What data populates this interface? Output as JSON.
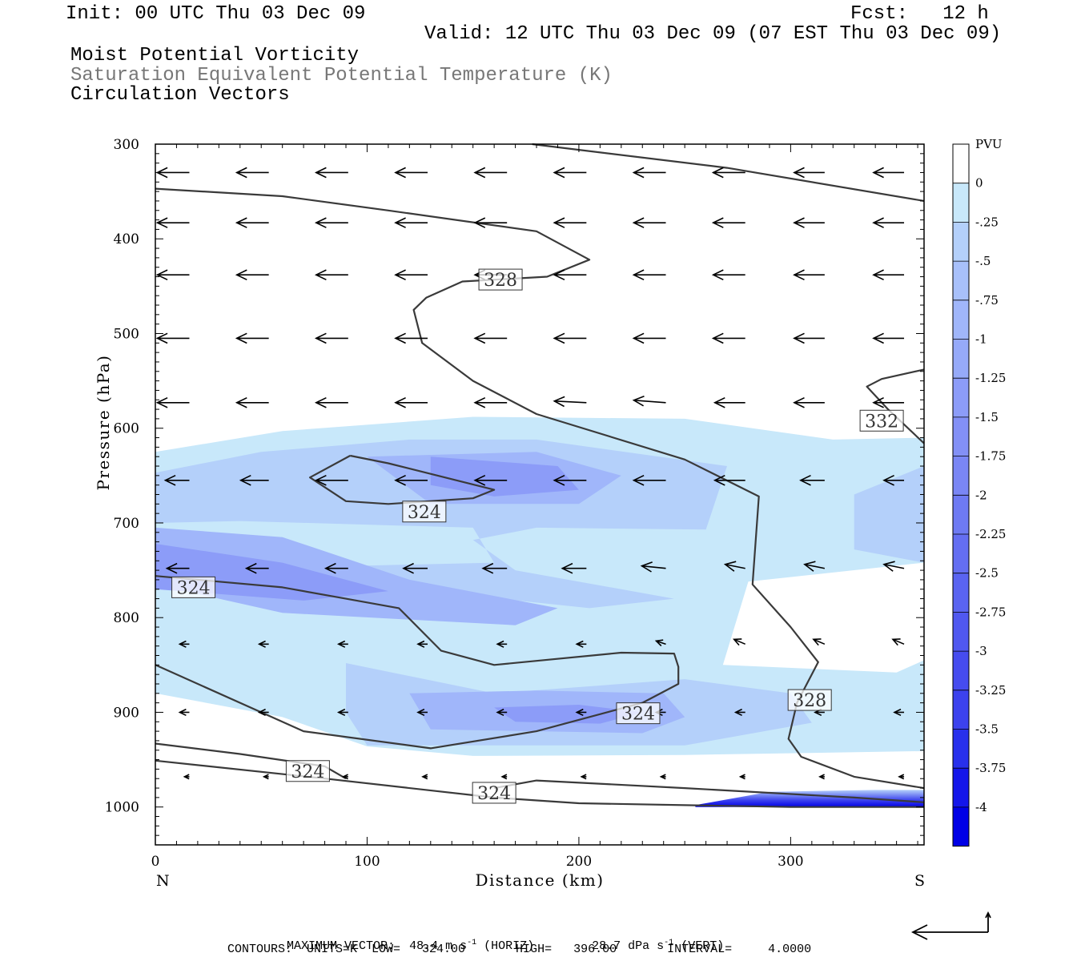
{
  "header": {
    "init": "Init: 00 UTC Thu 03 Dec 09",
    "fcst": "Fcst:   12 h",
    "valid": "Valid: 12 UTC Thu 03 Dec 09 (07 EST Thu 03 Dec 09)",
    "field1": "Moist Potential Vorticity",
    "field2": "Saturation Equivalent Potential Temperature (K)",
    "field3": "Circulation Vectors"
  },
  "footer": {
    "max_vector_label": "MAXIMUM VECTOR:",
    "max_horiz": "48.4 m s",
    "max_horiz_unit": "(HORIZ)",
    "max_vert": "28.7 dPa s",
    "max_vert_unit": "(VERT)",
    "exp": "-1",
    "contours": "CONTOURS:  UNITS=K  LOW=   324.00       HIGH=   396.00       INTERVAL=     4.0000"
  },
  "colors": {
    "c1": "#c8e8fa",
    "c2": "#b4d0fa",
    "c3": "#a0b6fa",
    "c4": "#8c9cf8",
    "c5": "#7a86f5",
    "c6": "#646ef2",
    "c7": "#5058f0",
    "c8": "#3c42ee",
    "c9": "#282cec",
    "c10": "#1416ea",
    "c11": "#0000e6",
    "contour": "#3a3a3a"
  },
  "chart_data": {
    "type": "cross-section",
    "xlabel": "Distance (km)",
    "ylabel": "Pressure (hPa)",
    "xlim": [
      0,
      363
    ],
    "ylim": [
      1040,
      300
    ],
    "x_ticks": [
      0,
      100,
      200,
      300
    ],
    "y_ticks": [
      300,
      400,
      500,
      600,
      700,
      800,
      900,
      1000
    ],
    "x_end_left": "N",
    "x_end_right": "S",
    "colorbar": {
      "unit": "PVU",
      "labels": [
        "0",
        "-.25",
        "-.5",
        "-.75",
        "-1",
        "-1.25",
        "-1.5",
        "-1.75",
        "-2",
        "-2.25",
        "-2.5",
        "-2.75",
        "-3",
        "-3.25",
        "-3.5",
        "-3.75",
        "-4"
      ],
      "colors": [
        "#ffffff",
        "#c8e8fa",
        "#b4d0fa",
        "#a8c0fa",
        "#a0b6fa",
        "#96aaf9",
        "#8c9cf8",
        "#8390f6",
        "#7a86f5",
        "#6e7af3",
        "#646ef2",
        "#5a64f1",
        "#5058f0",
        "#464cef",
        "#3c42ee",
        "#2830ec",
        "#1416ea",
        "#0000e6"
      ]
    },
    "contour_labels": [
      {
        "value": "328",
        "x": 163,
        "y": 443
      },
      {
        "value": "332",
        "x": 343,
        "y": 592
      },
      {
        "value": "324",
        "x": 127,
        "y": 688
      },
      {
        "value": "324",
        "x": 18,
        "y": 768
      },
      {
        "value": "328",
        "x": 309,
        "y": 887
      },
      {
        "value": "324",
        "x": 228,
        "y": 901
      },
      {
        "value": "324",
        "x": 72,
        "y": 962
      },
      {
        "value": "324",
        "x": 160,
        "y": 985
      }
    ],
    "contours": [
      {
        "label": "328",
        "points": [
          [
            0,
            347
          ],
          [
            60,
            355
          ],
          [
            110,
            370
          ],
          [
            180,
            392
          ],
          [
            205,
            422
          ],
          [
            185,
            440
          ],
          [
            145,
            445
          ],
          [
            128,
            462
          ],
          [
            122,
            475
          ],
          [
            126,
            510
          ],
          [
            150,
            550
          ],
          [
            180,
            585
          ],
          [
            250,
            633
          ],
          [
            285,
            672
          ],
          [
            282,
            765
          ],
          [
            300,
            810
          ],
          [
            313,
            847
          ],
          [
            303,
            890
          ],
          [
            299,
            928
          ],
          [
            305,
            947
          ],
          [
            330,
            968
          ],
          [
            363,
            980
          ]
        ]
      },
      {
        "label": "332",
        "points": [
          [
            178,
            300
          ],
          [
            270,
            325
          ],
          [
            363,
            360
          ]
        ]
      },
      {
        "label": "332",
        "points": [
          [
            363,
            538
          ],
          [
            343,
            548
          ],
          [
            336,
            556
          ],
          [
            346,
            580
          ],
          [
            363,
            616
          ]
        ]
      },
      {
        "label": "324",
        "points": [
          [
            92,
            629
          ],
          [
            110,
            637
          ],
          [
            160,
            665
          ],
          [
            150,
            674
          ],
          [
            110,
            680
          ],
          [
            90,
            677
          ],
          [
            73,
            652
          ],
          [
            92,
            629
          ]
        ]
      },
      {
        "label": "324",
        "points": [
          [
            0,
            756
          ],
          [
            60,
            768
          ],
          [
            90,
            780
          ],
          [
            115,
            790
          ],
          [
            135,
            835
          ],
          [
            160,
            850
          ],
          [
            220,
            837
          ],
          [
            245,
            838
          ],
          [
            247,
            852
          ],
          [
            247,
            870
          ],
          [
            230,
            890
          ],
          [
            180,
            920
          ],
          [
            130,
            938
          ],
          [
            70,
            920
          ],
          [
            0,
            850
          ]
        ]
      },
      {
        "label": "324",
        "points": [
          [
            0,
            933
          ],
          [
            40,
            944
          ],
          [
            80,
            957
          ],
          [
            90,
            970
          ]
        ]
      },
      {
        "label": "324",
        "points": [
          [
            0,
            951
          ],
          [
            80,
            970
          ],
          [
            160,
            990
          ],
          [
            200,
            996
          ],
          [
            300,
            1000
          ],
          [
            363,
            1000
          ]
        ]
      },
      {
        "label": "324",
        "points": [
          [
            160,
            980
          ],
          [
            180,
            972
          ],
          [
            250,
            980
          ],
          [
            330,
            990
          ],
          [
            363,
            995
          ]
        ]
      }
    ],
    "pv_shading": [
      {
        "level": "-0.25",
        "points": [
          [
            0,
            625
          ],
          [
            60,
            603
          ],
          [
            150,
            588
          ],
          [
            250,
            590
          ],
          [
            320,
            612
          ],
          [
            363,
            610
          ],
          [
            363,
            742
          ],
          [
            280,
            762
          ],
          [
            268,
            850
          ],
          [
            350,
            858
          ],
          [
            363,
            845
          ],
          [
            363,
            941
          ],
          [
            250,
            945
          ],
          [
            150,
            946
          ],
          [
            100,
            936
          ],
          [
            60,
            905
          ],
          [
            0,
            880
          ]
        ]
      },
      {
        "level": "-0.5",
        "points": [
          [
            0,
            647
          ],
          [
            50,
            625
          ],
          [
            120,
            612
          ],
          [
            180,
            612
          ],
          [
            270,
            640
          ],
          [
            260,
            707
          ],
          [
            180,
            705
          ],
          [
            150,
            718
          ],
          [
            170,
            750
          ],
          [
            245,
            780
          ],
          [
            205,
            790
          ],
          [
            120,
            770
          ],
          [
            100,
            745
          ],
          [
            160,
            742
          ],
          [
            150,
            705
          ],
          [
            40,
            698
          ],
          [
            0,
            700
          ]
        ]
      },
      {
        "level": "-0.5",
        "points": [
          [
            90,
            848
          ],
          [
            160,
            880
          ],
          [
            250,
            865
          ],
          [
            300,
            880
          ],
          [
            310,
            911
          ],
          [
            250,
            935
          ],
          [
            100,
            935
          ],
          [
            90,
            900
          ]
        ]
      },
      {
        "level": "-0.5",
        "points": [
          [
            330,
            670
          ],
          [
            363,
            640
          ],
          [
            363,
            742
          ],
          [
            330,
            728
          ]
        ]
      },
      {
        "level": "-0.75",
        "points": [
          [
            100,
            630
          ],
          [
            180,
            625
          ],
          [
            220,
            650
          ],
          [
            200,
            680
          ],
          [
            130,
            680
          ]
        ]
      },
      {
        "level": "-0.75",
        "points": [
          [
            0,
            705
          ],
          [
            60,
            715
          ],
          [
            120,
            760
          ],
          [
            190,
            790
          ],
          [
            170,
            808
          ],
          [
            60,
            795
          ],
          [
            0,
            765
          ]
        ]
      },
      {
        "level": "-0.75",
        "points": [
          [
            120,
            880
          ],
          [
            180,
            877
          ],
          [
            240,
            880
          ],
          [
            250,
            905
          ],
          [
            230,
            922
          ],
          [
            130,
            918
          ]
        ]
      },
      {
        "level": "-1.0",
        "points": [
          [
            130,
            630
          ],
          [
            190,
            640
          ],
          [
            200,
            665
          ],
          [
            160,
            672
          ],
          [
            130,
            660
          ]
        ]
      },
      {
        "level": "-1.0",
        "points": [
          [
            0,
            722
          ],
          [
            60,
            742
          ],
          [
            110,
            772
          ],
          [
            70,
            782
          ],
          [
            0,
            770
          ]
        ]
      },
      {
        "level": "-1.0",
        "points": [
          [
            160,
            895
          ],
          [
            200,
            892
          ],
          [
            230,
            900
          ],
          [
            210,
            912
          ],
          [
            170,
            910
          ]
        ]
      }
    ],
    "vectors_grid_x": [
      8.5,
      46,
      83.5,
      121,
      158.5,
      196,
      233.5,
      271,
      308.5,
      346
    ],
    "vectors": [
      {
        "p": 330,
        "dx": [
          -40,
          -40,
          -40,
          -40,
          -40,
          -40,
          -40,
          -40,
          -38,
          -38
        ],
        "dy": [
          0,
          0,
          0,
          0,
          0,
          0,
          0,
          0,
          0,
          0
        ]
      },
      {
        "p": 383,
        "dx": [
          -40,
          -40,
          -40,
          -40,
          -40,
          -40,
          -40,
          -40,
          -38,
          -38
        ],
        "dy": [
          0,
          0,
          0,
          0,
          0,
          0,
          0,
          0,
          0,
          0
        ]
      },
      {
        "p": 438,
        "dx": [
          -40,
          -40,
          -40,
          -40,
          -40,
          -40,
          -40,
          -40,
          -38,
          -38
        ],
        "dy": [
          0,
          0,
          0,
          0,
          0,
          0,
          0,
          0,
          0,
          0
        ]
      },
      {
        "p": 505,
        "dx": [
          -40,
          -40,
          -40,
          -40,
          -40,
          -40,
          -40,
          -40,
          -38,
          -38
        ],
        "dy": [
          0,
          0,
          0,
          0,
          0,
          0,
          0,
          0,
          0,
          0
        ]
      },
      {
        "p": 573,
        "dx": [
          -40,
          -40,
          -40,
          -40,
          -40,
          -40,
          -40,
          -38,
          -38,
          -38
        ],
        "dy": [
          0,
          0,
          0,
          0,
          0,
          2,
          3,
          0,
          0,
          0
        ]
      },
      {
        "p": 655,
        "dx": [
          -30,
          -35,
          -40,
          -40,
          -40,
          -40,
          -40,
          -38,
          -30,
          -25
        ],
        "dy": [
          0,
          0,
          0,
          0,
          0,
          0,
          0,
          0,
          0,
          0
        ]
      },
      {
        "p": 748,
        "dx": [
          -28,
          -28,
          -28,
          -30,
          -30,
          -30,
          -30,
          -25,
          -25,
          -25
        ],
        "dy": [
          0,
          0,
          0,
          0,
          0,
          0,
          3,
          5,
          5,
          5
        ]
      },
      {
        "p": 828,
        "dx": [
          -12,
          -12,
          -12,
          -12,
          -12,
          -12,
          -12,
          -14,
          -14,
          -14
        ],
        "dy": [
          0,
          0,
          0,
          0,
          0,
          0,
          4,
          6,
          6,
          6
        ]
      },
      {
        "p": 900,
        "dx": [
          -12,
          -12,
          -12,
          -12,
          -12,
          -12,
          -12,
          -12,
          -12,
          -12
        ],
        "dy": [
          0,
          0,
          0,
          0,
          0,
          0,
          0,
          0,
          0,
          0
        ]
      },
      {
        "p": 968,
        "dx": [
          -6,
          -6,
          -6,
          -6,
          -6,
          -6,
          -6,
          -6,
          -6,
          -6
        ],
        "dy": [
          0,
          0,
          0,
          0,
          0,
          0,
          0,
          0,
          0,
          0
        ]
      }
    ]
  }
}
